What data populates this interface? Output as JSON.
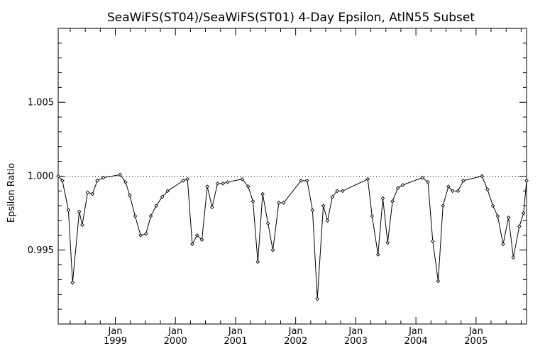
{
  "chart_data": {
    "type": "line",
    "title": "SeaWiFS(ST04)/SeaWiFS(ST01) 4-Day Epsilon, AtlN55 Subset",
    "xlabel": "",
    "ylabel": "Epsilon Ratio",
    "ylim": [
      0.99,
      1.01
    ],
    "y_ticks": [
      0.995,
      1.0,
      1.005
    ],
    "y_tick_labels": [
      "0.995",
      "1.000",
      "1.005"
    ],
    "xlim": [
      1998.05,
      2005.84
    ],
    "x_ticks": [
      1999.0,
      2000.0,
      2001.0,
      2002.0,
      2003.0,
      2004.0,
      2005.0
    ],
    "x_tick_month_label": "Jan",
    "x_tick_year_labels": [
      "1999",
      "2000",
      "2001",
      "2002",
      "2003",
      "2004",
      "2005"
    ],
    "reference_line": {
      "y": 1.0,
      "style": "dotted"
    },
    "series": [
      {
        "marker": "diamond",
        "x": [
          1998.05,
          1998.12,
          1998.22,
          1998.29,
          1998.4,
          1998.45,
          1998.54,
          1998.62,
          1998.7,
          1998.8,
          1999.08,
          1999.17,
          1999.24,
          1999.33,
          1999.42,
          1999.51,
          1999.59,
          1999.68,
          1999.78,
          1999.87,
          2000.13,
          2000.2,
          2000.28,
          2000.36,
          2000.44,
          2000.53,
          2000.61,
          2000.7,
          2000.79,
          2000.87,
          2001.11,
          2001.21,
          2001.29,
          2001.37,
          2001.45,
          2001.54,
          2001.62,
          2001.72,
          2001.8,
          2002.09,
          2002.19,
          2002.28,
          2002.36,
          2002.46,
          2002.53,
          2002.61,
          2002.69,
          2002.78,
          2003.2,
          2003.27,
          2003.37,
          2003.45,
          2003.53,
          2003.61,
          2003.7,
          2003.78,
          2004.11,
          2004.2,
          2004.28,
          2004.37,
          2004.45,
          2004.54,
          2004.61,
          2004.7,
          2004.79,
          2005.1,
          2005.19,
          2005.28,
          2005.36,
          2005.45,
          2005.54,
          2005.62,
          2005.72,
          2005.79,
          2005.84
        ],
        "y": [
          1.0,
          0.9997,
          0.9977,
          0.9928,
          0.9976,
          0.9967,
          0.9989,
          0.9988,
          0.9997,
          0.9999,
          1.0001,
          0.9996,
          0.9987,
          0.9973,
          0.996,
          0.9961,
          0.9973,
          0.998,
          0.9986,
          0.999,
          0.9997,
          0.9998,
          0.9954,
          0.996,
          0.9957,
          0.9993,
          0.9979,
          0.9995,
          0.9995,
          0.9996,
          0.9998,
          0.9993,
          0.9983,
          0.9942,
          0.9988,
          0.9968,
          0.995,
          0.9982,
          0.9982,
          0.9997,
          0.9997,
          0.9977,
          0.9917,
          0.998,
          0.997,
          0.9986,
          0.999,
          0.999,
          0.9998,
          0.9973,
          0.9947,
          0.9985,
          0.9955,
          0.9983,
          0.9992,
          0.9994,
          0.9999,
          0.9996,
          0.9956,
          0.9929,
          0.998,
          0.9993,
          0.999,
          0.999,
          0.9997,
          1.0,
          0.9991,
          0.998,
          0.9973,
          0.9954,
          0.9972,
          0.9945,
          0.9966,
          0.9975,
          0.9997
        ]
      }
    ],
    "grid": false,
    "colors": {
      "line": "#000000",
      "marker": "#000000",
      "axes": "#000000",
      "background": "#ffffff"
    }
  }
}
